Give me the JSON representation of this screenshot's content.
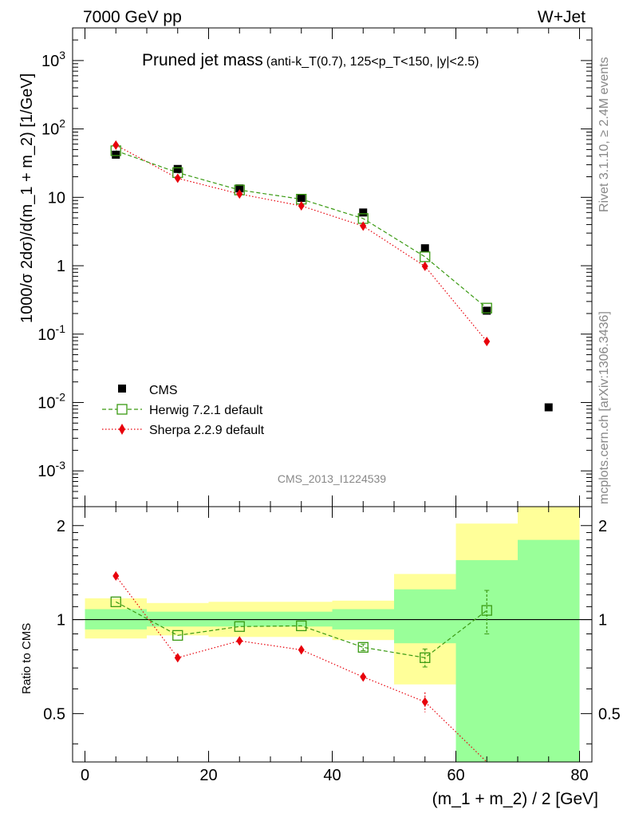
{
  "header": {
    "left": "7000 GeV pp",
    "right": "W+Jet"
  },
  "title": {
    "main": "Pruned jet mass",
    "sub": "(anti-k_T(0.7), 125<p_T<150, |y|<2.5)"
  },
  "side_labels": {
    "top": "Rivet 3.1.10, ≥ 2.4M events",
    "bottom": "mcplots.cern.ch [arXiv:1306.3436]"
  },
  "watermark": "CMS_2013_I1224539",
  "colors": {
    "data": "#000000",
    "herwig": "#3a9a12",
    "sherpa": "#e8000b",
    "band_yellow": "#ffff99",
    "band_green": "#99ff99"
  },
  "chart_data": [
    {
      "type": "scatter",
      "panel": "main",
      "title": "Pruned jet mass (anti-k_T(0.7), 125<p_T<150, |y|<2.5)",
      "xlabel": "(m_1 + m_2) / 2 [GeV]",
      "ylabel": "1000/σ 2dσ)/d(m_1 + m_2) [1/GeV]",
      "xlim": [
        -2,
        82
      ],
      "ylim": [
        0.0003,
        3000
      ],
      "yscale": "log",
      "y_tick_labels": [
        "10^-3",
        "10^-2",
        "10^-1",
        "1",
        "10",
        "10^2",
        "10^3"
      ],
      "x": [
        5,
        15,
        25,
        35,
        45,
        55,
        65,
        75
      ],
      "series": [
        {
          "name": "CMS",
          "marker": "filled-square",
          "values": [
            42,
            26,
            13.5,
            9.8,
            6.0,
            1.8,
            0.22,
            0.0085
          ]
        },
        {
          "name": "Herwig 7.2.1 default",
          "marker": "open-square",
          "line": "dashed",
          "values": [
            48,
            23,
            12.8,
            9.4,
            4.9,
            1.35,
            0.24,
            null
          ]
        },
        {
          "name": "Sherpa 2.2.9 default",
          "marker": "diamond",
          "line": "dotted",
          "values": [
            58,
            19,
            11.2,
            7.5,
            3.8,
            0.98,
            0.078,
            null
          ]
        }
      ],
      "legend": "lower-left"
    },
    {
      "type": "scatter",
      "panel": "ratio",
      "ylabel": "Ratio to CMS",
      "xlabel": "(m_1 + m_2) / 2 [GeV]",
      "xlim": [
        -2,
        82
      ],
      "ylim": [
        0.35,
        2.3
      ],
      "yscale": "log",
      "y_tick_labels": [
        "0.5",
        "1",
        "2"
      ],
      "x_ticks": [
        0,
        20,
        40,
        60,
        80
      ],
      "bins": [
        [
          0,
          10
        ],
        [
          10,
          20
        ],
        [
          20,
          30
        ],
        [
          30,
          40
        ],
        [
          40,
          50
        ],
        [
          50,
          60
        ],
        [
          60,
          70
        ],
        [
          70,
          80
        ]
      ],
      "band_green": [
        [
          0.93,
          1.08
        ],
        [
          0.95,
          1.06
        ],
        [
          0.95,
          1.06
        ],
        [
          0.95,
          1.06
        ],
        [
          0.93,
          1.08
        ],
        [
          0.84,
          1.25
        ],
        [
          0.35,
          1.55
        ],
        [
          0.35,
          1.8
        ]
      ],
      "band_yellow": [
        [
          0.87,
          1.17
        ],
        [
          0.89,
          1.13
        ],
        [
          0.88,
          1.14
        ],
        [
          0.88,
          1.14
        ],
        [
          0.86,
          1.15
        ],
        [
          0.62,
          1.4
        ],
        [
          0.35,
          2.03
        ],
        [
          0.35,
          2.3
        ]
      ],
      "x": [
        5,
        15,
        25,
        35,
        45,
        55,
        65
      ],
      "series": [
        {
          "name": "Herwig 7.2.1 default",
          "values": [
            1.14,
            0.89,
            0.95,
            0.955,
            0.815,
            0.755,
            1.07
          ],
          "err": [
            0.01,
            0.01,
            0.01,
            0.01,
            0.02,
            0.05,
            0.17
          ]
        },
        {
          "name": "Sherpa 2.2.9 default",
          "values": [
            1.38,
            0.755,
            0.855,
            0.8,
            0.655,
            0.545,
            0.33
          ],
          "err": [
            0.01,
            0.01,
            0.01,
            0.01,
            0.02,
            0.04,
            0.0
          ]
        }
      ],
      "reference_line": 1
    }
  ]
}
